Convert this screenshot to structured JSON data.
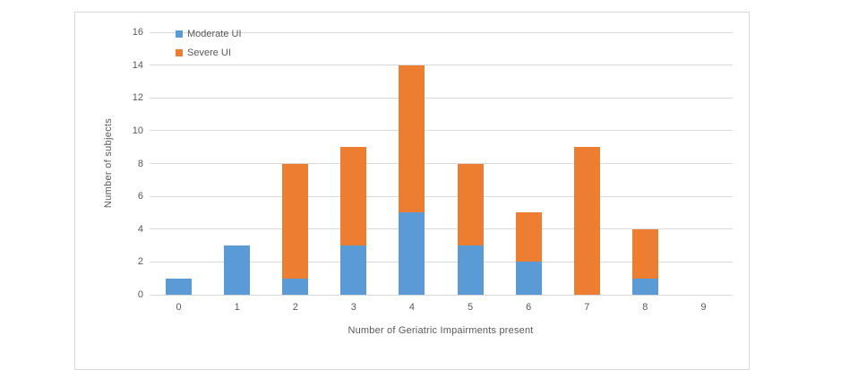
{
  "chart_data": {
    "type": "bar",
    "stacked": true,
    "title": "",
    "categories": [
      "0",
      "1",
      "2",
      "3",
      "4",
      "5",
      "6",
      "7",
      "8",
      "9"
    ],
    "series": [
      {
        "name": "Moderate UI",
        "color": "#5B9BD5",
        "values": [
          1,
          3,
          1,
          3,
          5,
          3,
          2,
          0,
          1,
          0
        ]
      },
      {
        "name": "Severe UI",
        "color": "#ED7D31",
        "values": [
          0,
          0,
          7,
          6,
          9,
          5,
          3,
          9,
          3,
          0
        ]
      }
    ],
    "xlabel": "Number of Geriatric Impairments present",
    "ylabel": "Number of subjects",
    "ylim": [
      0,
      16
    ],
    "yticks": [
      0,
      2,
      4,
      6,
      8,
      10,
      12,
      14,
      16
    ],
    "grid": true,
    "legend_position": "top-left-inside",
    "gridline_color": "#D9D9D9",
    "tick_text_color": "#595959",
    "frame_border_color": "#D9D9D9"
  }
}
